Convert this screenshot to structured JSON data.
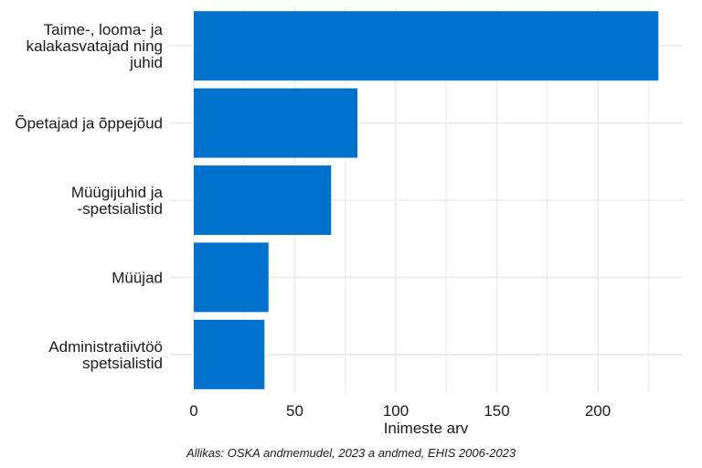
{
  "chart_data": {
    "type": "bar",
    "orientation": "horizontal",
    "categories": [
      [
        "Taime-, looma- ja",
        "kalakasvatajad ning",
        "juhid"
      ],
      [
        "Õpetajad ja õppejõud"
      ],
      [
        "Müügijuhid ja",
        "-spetsialistid"
      ],
      [
        "Müüjad"
      ],
      [
        "Administratiivtöö",
        "spetsialistid"
      ]
    ],
    "values": [
      230,
      81,
      68,
      37,
      35
    ],
    "xlabel": "Inimeste arv",
    "ylabel": "",
    "xlim": [
      0,
      240
    ],
    "xticks": [
      0,
      50,
      100,
      150,
      200
    ],
    "grid": true,
    "bar_color": "#0072CE",
    "caption": "Allikas: OSKA andmemudel, 2023 a andmed, EHIS 2006-2023"
  }
}
